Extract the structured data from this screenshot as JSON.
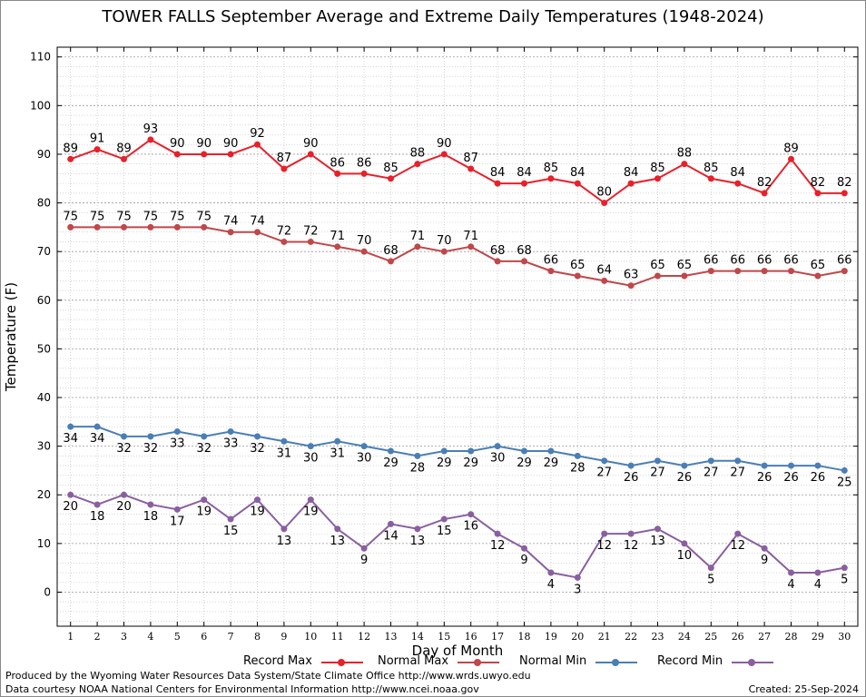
{
  "header": {
    "title": "TOWER FALLS September Average and Extreme Daily Temperatures (1948-2024)"
  },
  "footer": {
    "produced_by": "Produced by the Wyoming Water Resources Data System/State Climate Office http://www.wrds.uwyo.edu",
    "data_courtesy": "Data courtesy NOAA National Centers for Environmental Information http://www.ncei.noaa.gov",
    "created": "Created:  25-Sep-2024"
  },
  "chart_data": {
    "type": "line",
    "title": "TOWER FALLS September Average and Extreme Daily Temperatures (1948-2024)",
    "xlabel": "Day of Month",
    "ylabel": "Temperature (F)",
    "x": [
      1,
      2,
      3,
      4,
      5,
      6,
      7,
      8,
      9,
      10,
      11,
      12,
      13,
      14,
      15,
      16,
      17,
      18,
      19,
      20,
      21,
      22,
      23,
      24,
      25,
      26,
      27,
      28,
      29,
      30
    ],
    "xlim": [
      0.5,
      30.5
    ],
    "ylim": [
      -7,
      112
    ],
    "y_ticks": [
      0,
      10,
      20,
      30,
      40,
      50,
      60,
      70,
      80,
      90,
      100,
      110
    ],
    "grid": true,
    "legend_position": "bottom",
    "series": [
      {
        "name": "Record Max",
        "color": "#e8202a",
        "label_position": "above",
        "values": [
          89,
          91,
          89,
          93,
          90,
          90,
          90,
          92,
          87,
          90,
          86,
          86,
          85,
          88,
          90,
          87,
          84,
          84,
          85,
          84,
          80,
          84,
          85,
          88,
          85,
          84,
          82,
          89,
          82,
          82
        ]
      },
      {
        "name": "Normal Max",
        "color": "#c0474a",
        "label_position": "above",
        "values": [
          75,
          75,
          75,
          75,
          75,
          75,
          74,
          74,
          72,
          72,
          71,
          70,
          68,
          71,
          70,
          71,
          68,
          68,
          66,
          65,
          64,
          63,
          65,
          65,
          66,
          66,
          66,
          66,
          65,
          66
        ]
      },
      {
        "name": "Normal Min",
        "color": "#4a7fb5",
        "label_position": "below",
        "values": [
          34,
          34,
          32,
          32,
          33,
          32,
          33,
          32,
          31,
          30,
          31,
          30,
          29,
          28,
          29,
          29,
          30,
          29,
          29,
          28,
          27,
          26,
          27,
          26,
          27,
          27,
          26,
          26,
          26,
          25
        ]
      },
      {
        "name": "Record Min",
        "color": "#8a5fa0",
        "label_position": "below",
        "values": [
          20,
          18,
          20,
          18,
          17,
          19,
          15,
          19,
          13,
          19,
          13,
          9,
          14,
          13,
          15,
          16,
          12,
          9,
          4,
          3,
          12,
          12,
          13,
          10,
          5,
          12,
          9,
          4,
          4,
          5
        ]
      }
    ]
  }
}
